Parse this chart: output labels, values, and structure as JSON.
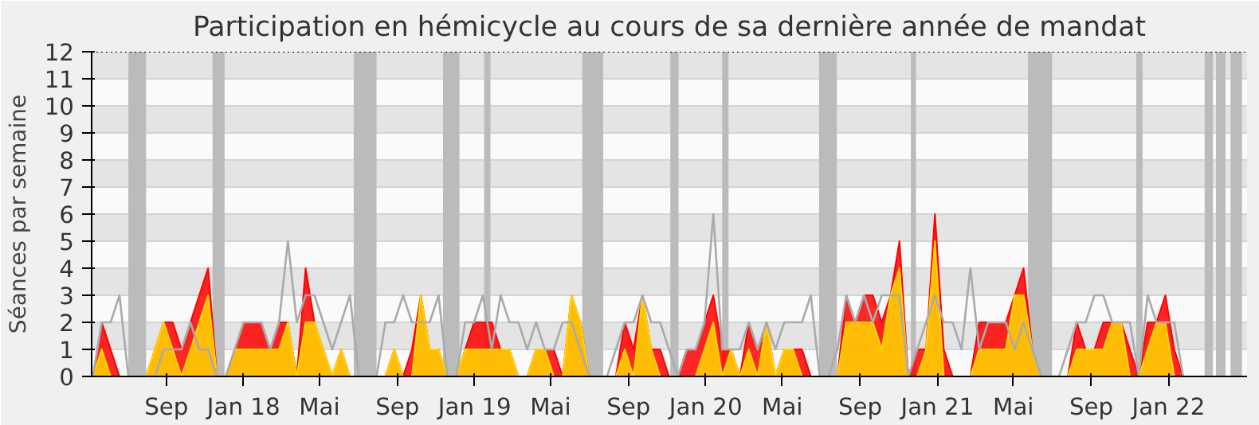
{
  "chart_data": {
    "type": "area",
    "title": "Participation en hémicycle au cours de sa dernière année de mandat",
    "ylabel": "Séances par semaine",
    "x": [
      "2017-05-08",
      "2017-05-22",
      "2017-06-05",
      "2017-06-19",
      "2017-07-03",
      "2017-07-17",
      "2017-07-31",
      "2017-08-14",
      "2017-08-28",
      "2017-09-11",
      "2017-09-25",
      "2017-10-09",
      "2017-10-23",
      "2017-11-06",
      "2017-11-20",
      "2017-12-04",
      "2017-12-18",
      "2018-01-01",
      "2018-01-15",
      "2018-01-29",
      "2018-02-12",
      "2018-02-26",
      "2018-03-12",
      "2018-03-26",
      "2018-04-09",
      "2018-04-23",
      "2018-05-07",
      "2018-05-21",
      "2018-06-04",
      "2018-06-18",
      "2018-07-02",
      "2018-07-16",
      "2018-07-30",
      "2018-08-13",
      "2018-08-27",
      "2018-09-10",
      "2018-09-24",
      "2018-10-08",
      "2018-10-22",
      "2018-11-05",
      "2018-11-19",
      "2018-12-03",
      "2018-12-17",
      "2018-12-31",
      "2019-01-14",
      "2019-01-28",
      "2019-02-11",
      "2019-02-25",
      "2019-03-11",
      "2019-03-25",
      "2019-04-08",
      "2019-04-22",
      "2019-05-06",
      "2019-05-20",
      "2019-06-03",
      "2019-06-17",
      "2019-07-01",
      "2019-07-15",
      "2019-07-29",
      "2019-08-12",
      "2019-08-26",
      "2019-09-09",
      "2019-09-23",
      "2019-10-07",
      "2019-10-21",
      "2019-11-04",
      "2019-11-18",
      "2019-12-02",
      "2019-12-16",
      "2019-12-30",
      "2020-01-13",
      "2020-01-27",
      "2020-02-10",
      "2020-02-24",
      "2020-03-09",
      "2020-03-23",
      "2020-04-06",
      "2020-04-20",
      "2020-05-04",
      "2020-05-18",
      "2020-06-01",
      "2020-06-15",
      "2020-06-29",
      "2020-07-13",
      "2020-07-27",
      "2020-08-10",
      "2020-08-24",
      "2020-09-07",
      "2020-09-21",
      "2020-10-05",
      "2020-10-19",
      "2020-11-02",
      "2020-11-16",
      "2020-11-30",
      "2020-12-14",
      "2020-12-28",
      "2021-01-11",
      "2021-01-25",
      "2021-02-08",
      "2021-02-22",
      "2021-03-08",
      "2021-03-22",
      "2021-04-05",
      "2021-04-19",
      "2021-05-03",
      "2021-05-17",
      "2021-05-31",
      "2021-06-14",
      "2021-06-28",
      "2021-07-12",
      "2021-07-26",
      "2021-08-09",
      "2021-08-23",
      "2021-09-06",
      "2021-09-20",
      "2021-10-04",
      "2021-10-18",
      "2021-11-01",
      "2021-11-15",
      "2021-11-29",
      "2021-12-13",
      "2021-12-27",
      "2022-01-10",
      "2022-01-24",
      "2022-02-07",
      "2022-02-21",
      "2022-03-07",
      "2022-03-21",
      "2022-04-04",
      "2022-04-18",
      "2022-05-02"
    ],
    "series": [
      {
        "color": "#ff0000",
        "values": [
          0,
          2,
          1,
          0,
          0,
          0,
          0,
          1,
          2,
          2,
          1,
          2,
          3,
          4,
          0,
          0,
          1,
          2,
          2,
          2,
          1,
          2,
          2,
          0,
          4,
          2,
          1,
          0,
          1,
          0,
          0,
          0,
          0,
          0,
          1,
          0,
          1,
          3,
          1,
          1,
          0,
          0,
          1,
          2,
          2,
          2,
          1,
          1,
          0,
          0,
          1,
          1,
          1,
          0,
          3,
          2,
          0,
          0,
          0,
          0,
          2,
          1,
          3,
          1,
          1,
          0,
          0,
          1,
          1,
          2,
          3,
          1,
          1,
          0,
          2,
          1,
          2,
          0,
          1,
          1,
          1,
          0,
          0,
          0,
          0,
          3,
          2,
          3,
          3,
          2,
          3,
          5,
          0,
          1,
          1,
          6,
          1,
          0,
          0,
          0,
          2,
          2,
          2,
          2,
          3,
          4,
          1,
          0,
          0,
          0,
          0,
          2,
          1,
          1,
          2,
          2,
          2,
          1,
          0,
          2,
          2,
          3,
          1,
          0,
          0,
          0,
          0,
          0,
          0,
          0,
          0
        ]
      },
      {
        "color": "#ffd700",
        "values": [
          0,
          1,
          0,
          0,
          0,
          0,
          0,
          1,
          2,
          1,
          0,
          1,
          2,
          3,
          0,
          0,
          1,
          1,
          1,
          1,
          1,
          1,
          2,
          0,
          2,
          2,
          1,
          0,
          1,
          0,
          0,
          0,
          0,
          0,
          1,
          0,
          0,
          3,
          1,
          1,
          0,
          0,
          1,
          1,
          1,
          1,
          1,
          1,
          0,
          0,
          1,
          1,
          0,
          0,
          3,
          2,
          0,
          0,
          0,
          0,
          1,
          0,
          3,
          1,
          0,
          0,
          0,
          0,
          0,
          1,
          2,
          0,
          1,
          0,
          1,
          0,
          2,
          0,
          1,
          1,
          0,
          0,
          0,
          0,
          0,
          2,
          2,
          2,
          2,
          1,
          3,
          4,
          0,
          0,
          1,
          5,
          0,
          0,
          0,
          0,
          1,
          1,
          1,
          1,
          3,
          3,
          1,
          0,
          0,
          0,
          0,
          1,
          1,
          1,
          1,
          2,
          2,
          0,
          0,
          1,
          2,
          2,
          0,
          0,
          0,
          0,
          0,
          0,
          0,
          0,
          0
        ]
      },
      {
        "type": "line",
        "color": "#aaaaaa",
        "values": [
          0,
          2,
          2,
          3,
          0,
          0,
          0,
          0,
          1,
          1,
          1,
          2,
          1,
          1,
          0,
          0,
          1,
          2,
          2,
          2,
          1,
          2,
          5,
          2,
          3,
          3,
          2,
          1,
          2,
          3,
          0,
          0,
          0,
          2,
          2,
          3,
          2,
          2,
          2,
          3,
          0,
          0,
          2,
          2,
          3,
          1,
          3,
          2,
          2,
          1,
          2,
          1,
          1,
          2,
          2,
          1,
          0,
          0,
          0,
          1,
          2,
          2,
          3,
          2,
          2,
          1,
          0,
          1,
          1,
          2,
          6,
          1,
          1,
          1,
          2,
          1,
          2,
          1,
          2,
          2,
          2,
          3,
          0,
          0,
          1,
          3,
          2,
          3,
          2,
          3,
          3,
          3,
          0,
          1,
          2,
          3,
          2,
          2,
          1,
          4,
          1,
          2,
          2,
          2,
          1,
          2,
          1,
          0,
          0,
          0,
          1,
          2,
          2,
          3,
          3,
          2,
          2,
          2,
          0,
          3,
          2,
          2,
          2,
          0,
          null,
          null,
          null,
          null,
          null,
          null,
          null
        ]
      }
    ],
    "xlim": [
      "2017-05-06",
      "2022-05-05"
    ],
    "xticks": [
      {
        "value": "2017-09-01",
        "label": "Sep"
      },
      {
        "value": "2018-01-01",
        "label": "Jan 18"
      },
      {
        "value": "2018-05-01",
        "label": "Mai"
      },
      {
        "value": "2018-09-01",
        "label": "Sep"
      },
      {
        "value": "2019-01-01",
        "label": "Jan 19"
      },
      {
        "value": "2019-05-01",
        "label": "Mai"
      },
      {
        "value": "2019-09-01",
        "label": "Sep"
      },
      {
        "value": "2020-01-01",
        "label": "Jan 20"
      },
      {
        "value": "2020-05-01",
        "label": "Mai"
      },
      {
        "value": "2020-09-01",
        "label": "Sep"
      },
      {
        "value": "2021-01-01",
        "label": "Jan 21"
      },
      {
        "value": "2021-05-01",
        "label": "Mai"
      },
      {
        "value": "2021-09-01",
        "label": "Sep"
      },
      {
        "value": "2022-01-01",
        "label": "Jan 22"
      }
    ],
    "ylim": [
      0,
      12
    ],
    "yticks": [
      0,
      1,
      2,
      3,
      4,
      5,
      6,
      7,
      8,
      9,
      10,
      11,
      12
    ],
    "grid": "y",
    "bands": [
      {
        "axis": "x",
        "from": "2017-07-03",
        "to": "2017-07-31",
        "color": "#bbbbbb"
      },
      {
        "axis": "x",
        "from": "2017-11-13",
        "to": "2017-12-02",
        "color": "#bbbbbb"
      },
      {
        "axis": "x",
        "from": "2018-06-24",
        "to": "2018-07-30",
        "color": "#bbbbbb"
      },
      {
        "axis": "x",
        "from": "2018-11-12",
        "to": "2018-12-08",
        "color": "#bbbbbb"
      },
      {
        "axis": "x",
        "from": "2019-01-16",
        "to": "2019-01-26",
        "color": "#bbbbbb"
      },
      {
        "axis": "x",
        "from": "2019-06-20",
        "to": "2019-07-23",
        "color": "#bbbbbb"
      },
      {
        "axis": "x",
        "from": "2019-11-06",
        "to": "2019-11-19",
        "color": "#bbbbbb"
      },
      {
        "axis": "x",
        "from": "2020-01-27",
        "to": "2020-02-06",
        "color": "#bbbbbb"
      },
      {
        "axis": "x",
        "from": "2020-06-28",
        "to": "2020-07-26",
        "color": "#bbbbbb"
      },
      {
        "axis": "x",
        "from": "2020-11-20",
        "to": "2020-11-28",
        "color": "#bbbbbb"
      },
      {
        "axis": "x",
        "from": "2021-05-24",
        "to": "2021-07-01",
        "color": "#bbbbbb"
      },
      {
        "axis": "x",
        "from": "2021-11-11",
        "to": "2021-11-21",
        "color": "#bbbbbb"
      },
      {
        "axis": "x",
        "from": "2022-02-27",
        "to": "2022-03-12",
        "color": "#bbbbbb"
      },
      {
        "axis": "x",
        "from": "2022-03-17",
        "to": "2022-04-01",
        "color": "#bbbbbb"
      },
      {
        "axis": "x",
        "from": "2022-04-09",
        "to": "2022-04-27",
        "color": "#bbbbbb"
      }
    ]
  }
}
